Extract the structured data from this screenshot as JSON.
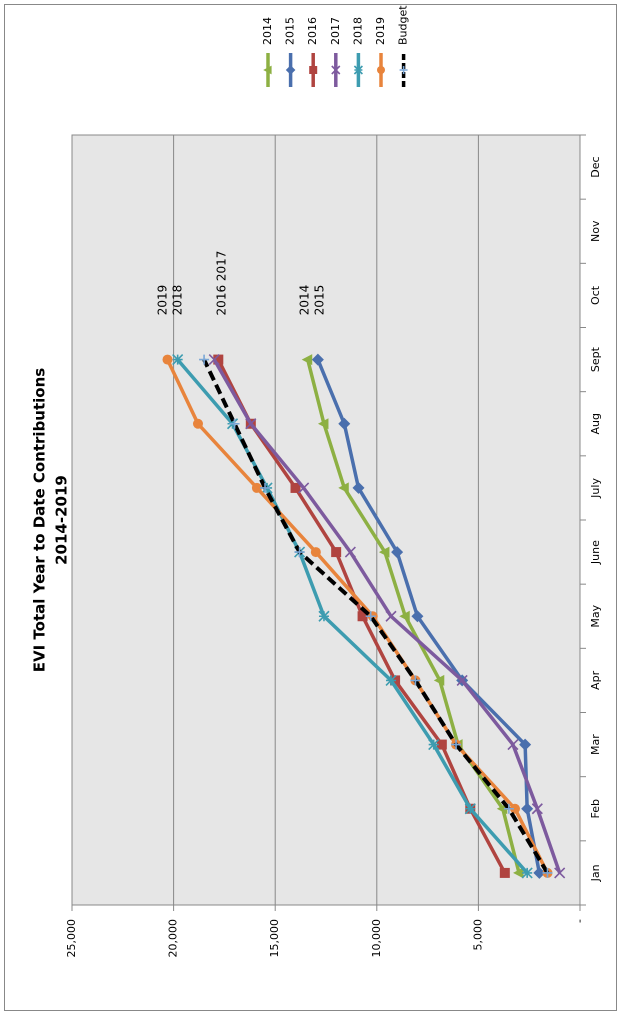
{
  "chart_data": {
    "type": "line",
    "title": "EVI Total Year to Date Contributions",
    "subtitle": "2014-2019",
    "categories": [
      "Jan",
      "Feb",
      "Mar",
      "Apr",
      "May",
      "June",
      "July",
      "Aug",
      "Sept",
      "Oct",
      "Nov",
      "Dec"
    ],
    "series": [
      {
        "name": "2014",
        "color": "#8db043",
        "marker": "triangle",
        "values": [
          3000,
          3800,
          6000,
          6900,
          8600,
          9600,
          11600,
          12600,
          13400,
          null,
          null,
          null
        ]
      },
      {
        "name": "2015",
        "color": "#4a6fad",
        "marker": "diamond",
        "values": [
          2000,
          2600,
          2700,
          5800,
          8000,
          9000,
          10900,
          11600,
          12900,
          null,
          null,
          null
        ]
      },
      {
        "name": "2016",
        "color": "#b04440",
        "marker": "square",
        "values": [
          3700,
          5400,
          6800,
          9100,
          10700,
          12000,
          14000,
          16200,
          17800,
          null,
          null,
          null
        ]
      },
      {
        "name": "2017",
        "color": "#7d5a9e",
        "marker": "x",
        "values": [
          1000,
          2100,
          3300,
          5800,
          9300,
          11300,
          13600,
          16200,
          18000,
          null,
          null,
          null
        ]
      },
      {
        "name": "2018",
        "color": "#3d9cb0",
        "marker": "star",
        "values": [
          2600,
          5400,
          7200,
          9300,
          12600,
          13800,
          15400,
          17100,
          19800,
          null,
          null,
          null
        ]
      },
      {
        "name": "2019",
        "color": "#e8843c",
        "marker": "circle",
        "values": [
          1600,
          3200,
          6100,
          8100,
          10200,
          13000,
          15900,
          18800,
          20300,
          null,
          null,
          null
        ]
      },
      {
        "name": "Budget",
        "color": "#000000",
        "marker": "plus",
        "marker_color": "#7aa6d6",
        "line_style": "dashed",
        "values": [
          1600,
          3500,
          6100,
          8100,
          10300,
          13800,
          15500,
          17000,
          18500,
          null,
          null,
          null
        ]
      }
    ],
    "ylim": [
      0,
      25000
    ],
    "yticks": [
      {
        "value": 0,
        "label": "-"
      },
      {
        "value": 5000,
        "label": "5,000"
      },
      {
        "value": 10000,
        "label": "10,000"
      },
      {
        "value": 15000,
        "label": "15,000"
      },
      {
        "value": 20000,
        "label": "20,000"
      },
      {
        "value": 25000,
        "label": "25,000"
      }
    ],
    "grid": true,
    "legend": "right",
    "annotations": [
      "2019",
      "2018",
      "2016 2017",
      "2014",
      "2015"
    ]
  }
}
